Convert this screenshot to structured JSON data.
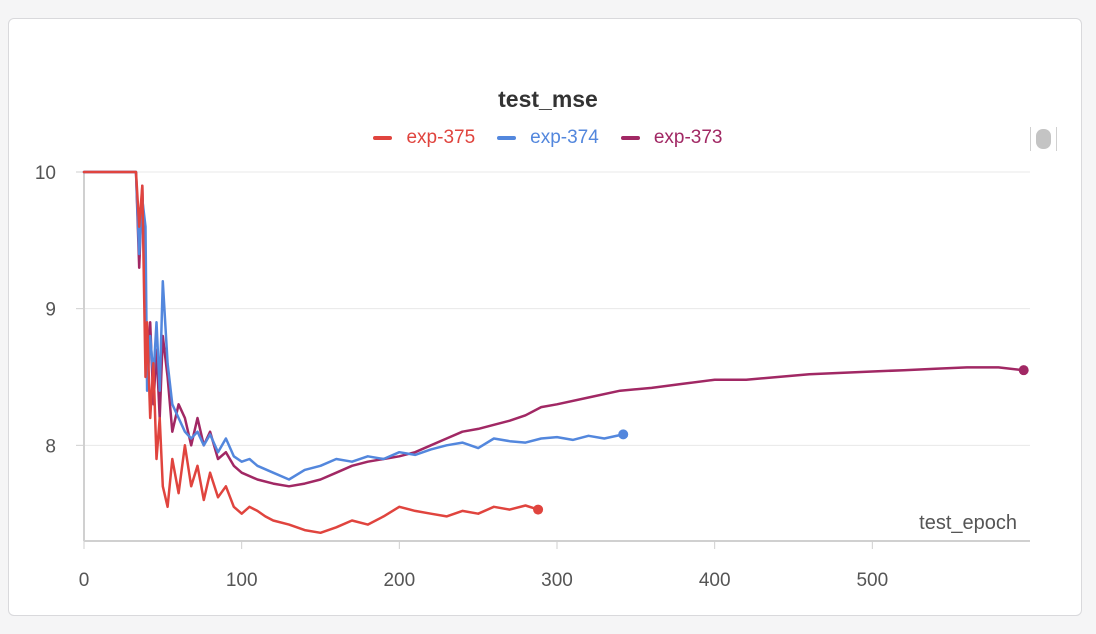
{
  "chart_data": {
    "type": "line",
    "title": "test_mse",
    "xlabel": "test_epoch",
    "ylabel": "",
    "xlim": [
      0,
      600
    ],
    "ylim": [
      7.3,
      10.0
    ],
    "x_ticks": [
      0,
      100,
      200,
      300,
      400,
      500
    ],
    "y_ticks": [
      8,
      9,
      10
    ],
    "grid": true,
    "legend_position": "top-center",
    "series": [
      {
        "name": "exp-375",
        "color": "#e0443e",
        "x": [
          0,
          33,
          35,
          37,
          39,
          40,
          42,
          44,
          46,
          48,
          50,
          53,
          56,
          60,
          64,
          68,
          72,
          76,
          80,
          85,
          90,
          95,
          100,
          105,
          110,
          115,
          120,
          130,
          140,
          150,
          160,
          170,
          180,
          190,
          200,
          210,
          220,
          230,
          240,
          250,
          260,
          270,
          280,
          288
        ],
        "values": [
          10.0,
          10.0,
          9.6,
          9.9,
          8.5,
          8.9,
          8.2,
          8.6,
          7.9,
          8.2,
          7.7,
          7.55,
          7.9,
          7.65,
          8.0,
          7.7,
          7.85,
          7.6,
          7.8,
          7.62,
          7.7,
          7.55,
          7.5,
          7.55,
          7.52,
          7.48,
          7.45,
          7.42,
          7.38,
          7.36,
          7.4,
          7.45,
          7.42,
          7.48,
          7.55,
          7.52,
          7.5,
          7.48,
          7.52,
          7.5,
          7.55,
          7.53,
          7.56,
          7.53
        ]
      },
      {
        "name": "exp-374",
        "color": "#5387dd",
        "x": [
          0,
          33,
          35,
          37,
          39,
          40,
          42,
          44,
          46,
          48,
          50,
          53,
          56,
          60,
          64,
          68,
          72,
          76,
          80,
          85,
          90,
          95,
          100,
          105,
          110,
          120,
          130,
          140,
          150,
          160,
          170,
          180,
          190,
          200,
          210,
          220,
          230,
          240,
          250,
          260,
          270,
          280,
          290,
          300,
          310,
          320,
          330,
          342
        ],
        "values": [
          10.0,
          10.0,
          9.4,
          9.8,
          9.6,
          8.4,
          8.8,
          8.5,
          8.9,
          8.4,
          9.2,
          8.6,
          8.3,
          8.2,
          8.1,
          8.05,
          8.1,
          8.0,
          8.08,
          7.95,
          8.05,
          7.92,
          7.88,
          7.9,
          7.85,
          7.8,
          7.75,
          7.82,
          7.85,
          7.9,
          7.88,
          7.92,
          7.9,
          7.95,
          7.93,
          7.97,
          8.0,
          8.02,
          7.98,
          8.05,
          8.03,
          8.02,
          8.05,
          8.06,
          8.04,
          8.07,
          8.05,
          8.08
        ]
      },
      {
        "name": "exp-373",
        "color": "#a12864",
        "x": [
          0,
          33,
          35,
          37,
          39,
          40,
          42,
          44,
          46,
          48,
          50,
          53,
          56,
          60,
          64,
          68,
          72,
          76,
          80,
          85,
          90,
          95,
          100,
          110,
          120,
          130,
          140,
          150,
          160,
          170,
          180,
          190,
          200,
          210,
          220,
          230,
          240,
          250,
          260,
          270,
          280,
          290,
          300,
          320,
          340,
          360,
          380,
          400,
          420,
          440,
          460,
          480,
          500,
          520,
          540,
          560,
          580,
          596
        ],
        "values": [
          10.0,
          10.0,
          9.3,
          9.9,
          9.0,
          8.5,
          8.9,
          8.3,
          8.7,
          8.2,
          8.8,
          8.5,
          8.1,
          8.3,
          8.2,
          8.0,
          8.2,
          8.0,
          8.1,
          7.9,
          7.95,
          7.85,
          7.8,
          7.75,
          7.72,
          7.7,
          7.72,
          7.75,
          7.8,
          7.85,
          7.88,
          7.9,
          7.92,
          7.95,
          8.0,
          8.05,
          8.1,
          8.12,
          8.15,
          8.18,
          8.22,
          8.28,
          8.3,
          8.35,
          8.4,
          8.42,
          8.45,
          8.48,
          8.48,
          8.5,
          8.52,
          8.53,
          8.54,
          8.55,
          8.56,
          8.57,
          8.57,
          8.55
        ]
      }
    ]
  }
}
